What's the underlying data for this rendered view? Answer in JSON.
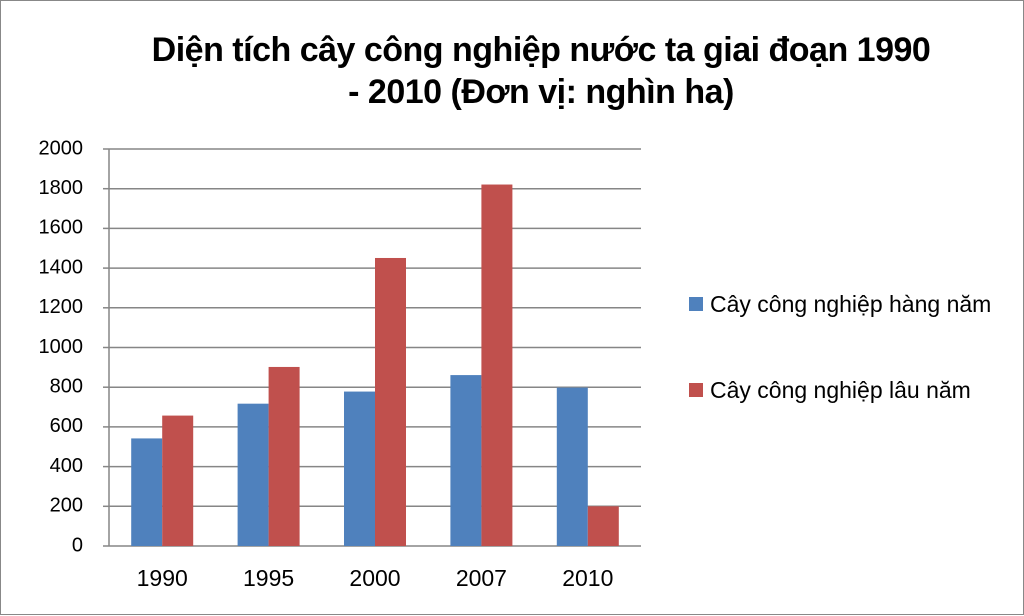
{
  "chart_data": {
    "type": "bar",
    "title": "Diện tích cây công nghiệp nước ta giai đoạn 1990 - 2010 (Đơn vị: nghìn ha)",
    "categories": [
      "1990",
      "1995",
      "2000",
      "2007",
      "2010"
    ],
    "series": [
      {
        "name": "Cây công nghiệp hàng năm",
        "color": "#4f81bd",
        "values": [
          542,
          717,
          778,
          861,
          798
        ]
      },
      {
        "name": "Cây công nghiệp lâu năm",
        "color": "#c0504d",
        "values": [
          657,
          902,
          1451,
          1821,
          200
        ]
      }
    ],
    "ylim": [
      0,
      2000
    ],
    "yticks": [
      0,
      200,
      400,
      600,
      800,
      1000,
      1200,
      1400,
      1600,
      1800,
      2000
    ],
    "grid": true,
    "legend": "right"
  }
}
